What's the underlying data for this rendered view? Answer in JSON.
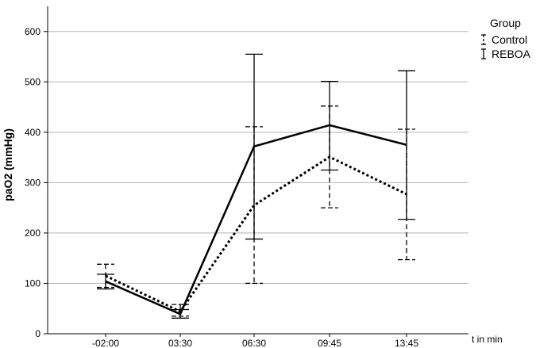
{
  "chart_data": {
    "type": "line",
    "title": "",
    "xlabel": "t in min",
    "ylabel": "paO2 (mmHg)",
    "categories": [
      "-02:00",
      "03:30",
      "06:30",
      "09:45",
      "13:45"
    ],
    "ylim": [
      0,
      650
    ],
    "yticks": [
      0,
      100,
      200,
      300,
      400,
      500,
      600
    ],
    "grid": true,
    "legend": {
      "title": "Group",
      "placement": "top-right"
    },
    "series": [
      {
        "name": "Control",
        "line_style": "dotted",
        "values": [
          115,
          44,
          255,
          351,
          277
        ],
        "error_low": [
          92,
          35,
          100,
          250,
          147
        ],
        "error_high": [
          138,
          58,
          411,
          452,
          406
        ]
      },
      {
        "name": "REBOA",
        "line_style": "solid",
        "values": [
          104,
          39,
          372,
          414,
          375
        ],
        "error_low": [
          89,
          31,
          188,
          325,
          227
        ],
        "error_high": [
          118,
          48,
          555,
          501,
          522
        ]
      }
    ]
  },
  "colors": {
    "lines": "#000000",
    "grid": "#b4b4b4",
    "axis": "#000000"
  }
}
